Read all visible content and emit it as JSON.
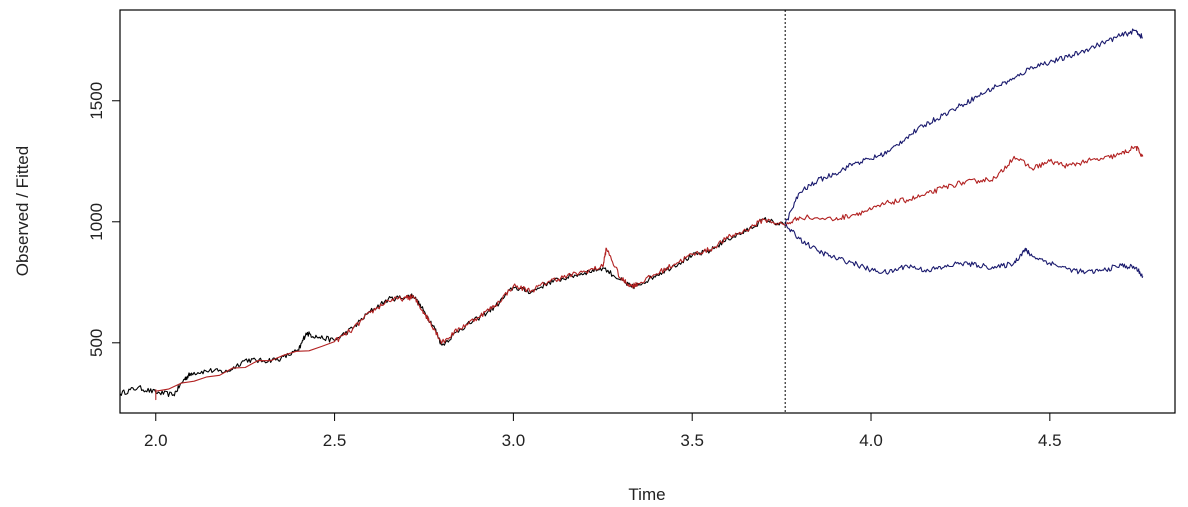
{
  "chart_data": {
    "type": "line",
    "title": "",
    "xlabel": "Time",
    "ylabel": "Observed / Fitted",
    "xlim": [
      1.9,
      4.85
    ],
    "ylim": [
      210,
      1875
    ],
    "x_ticks": [
      2.0,
      2.5,
      3.0,
      3.5,
      4.0,
      4.5
    ],
    "x_tick_labels": [
      "2.0",
      "2.5",
      "3.0",
      "3.5",
      "4.0",
      "4.5"
    ],
    "y_ticks": [
      500,
      1000,
      1500
    ],
    "y_tick_labels": [
      "500",
      "1000",
      "1500"
    ],
    "vline_x": 3.76,
    "grid": false,
    "legend": "none",
    "series": [
      {
        "role": "observed",
        "color": "#000000",
        "x": [
          1.9,
          1.95,
          2.0,
          2.05,
          2.08,
          2.1,
          2.15,
          2.2,
          2.25,
          2.3,
          2.35,
          2.4,
          2.42,
          2.45,
          2.5,
          2.55,
          2.6,
          2.65,
          2.7,
          2.72,
          2.75,
          2.78,
          2.8,
          2.85,
          2.9,
          2.95,
          3.0,
          3.05,
          3.1,
          3.15,
          3.2,
          3.25,
          3.3,
          3.33,
          3.35,
          3.4,
          3.45,
          3.5,
          3.55,
          3.6,
          3.65,
          3.7,
          3.76
        ],
        "y": [
          290,
          315,
          295,
          285,
          350,
          375,
          385,
          380,
          430,
          425,
          435,
          470,
          540,
          525,
          510,
          560,
          630,
          680,
          690,
          695,
          630,
          560,
          490,
          555,
          600,
          650,
          730,
          710,
          750,
          770,
          790,
          810,
          760,
          730,
          740,
          780,
          820,
          860,
          880,
          930,
          960,
          1010,
          985
        ]
      },
      {
        "role": "fitted",
        "color": "#b22222",
        "x": [
          2.0,
          2.0,
          2.5,
          2.55,
          2.6,
          2.65,
          2.7,
          2.72,
          2.75,
          2.78,
          2.8,
          2.85,
          2.9,
          2.95,
          3.0,
          3.05,
          3.1,
          3.15,
          3.2,
          3.25,
          3.26,
          3.3,
          3.33,
          3.35,
          3.4,
          3.45,
          3.5,
          3.55,
          3.6,
          3.65,
          3.7,
          3.76,
          3.8,
          3.9,
          3.95,
          4.0,
          4.05,
          4.1,
          4.15,
          4.2,
          4.25,
          4.3,
          4.35,
          4.4,
          4.45,
          4.5,
          4.55,
          4.6,
          4.65,
          4.7,
          4.74,
          4.76
        ],
        "y": [
          265,
          300,
          505,
          555,
          625,
          675,
          685,
          690,
          625,
          555,
          500,
          560,
          605,
          655,
          735,
          715,
          755,
          775,
          795,
          815,
          890,
          765,
          735,
          745,
          785,
          825,
          865,
          885,
          935,
          965,
          1010,
          985,
          1020,
          1010,
          1030,
          1050,
          1080,
          1090,
          1110,
          1140,
          1160,
          1170,
          1180,
          1270,
          1220,
          1250,
          1230,
          1250,
          1260,
          1280,
          1310,
          1270
        ]
      },
      {
        "role": "upper band",
        "color": "#1a1a6e",
        "x": [
          3.76,
          3.8,
          3.85,
          3.9,
          3.95,
          4.0,
          4.05,
          4.1,
          4.15,
          4.2,
          4.25,
          4.3,
          4.35,
          4.4,
          4.45,
          4.5,
          4.55,
          4.6,
          4.65,
          4.7,
          4.74,
          4.76
        ],
        "y": [
          990,
          1120,
          1170,
          1200,
          1240,
          1260,
          1290,
          1350,
          1400,
          1440,
          1480,
          1520,
          1560,
          1590,
          1640,
          1660,
          1680,
          1710,
          1740,
          1770,
          1790,
          1760
        ]
      },
      {
        "role": "lower band",
        "color": "#1a1a6e",
        "x": [
          3.76,
          3.8,
          3.85,
          3.9,
          3.95,
          4.0,
          4.05,
          4.1,
          4.15,
          4.2,
          4.25,
          4.3,
          4.35,
          4.4,
          4.43,
          4.45,
          4.5,
          4.55,
          4.6,
          4.65,
          4.7,
          4.74,
          4.76
        ],
        "y": [
          985,
          930,
          880,
          850,
          830,
          800,
          790,
          820,
          800,
          810,
          830,
          820,
          810,
          830,
          885,
          860,
          830,
          805,
          790,
          800,
          820,
          810,
          775
        ]
      }
    ]
  }
}
